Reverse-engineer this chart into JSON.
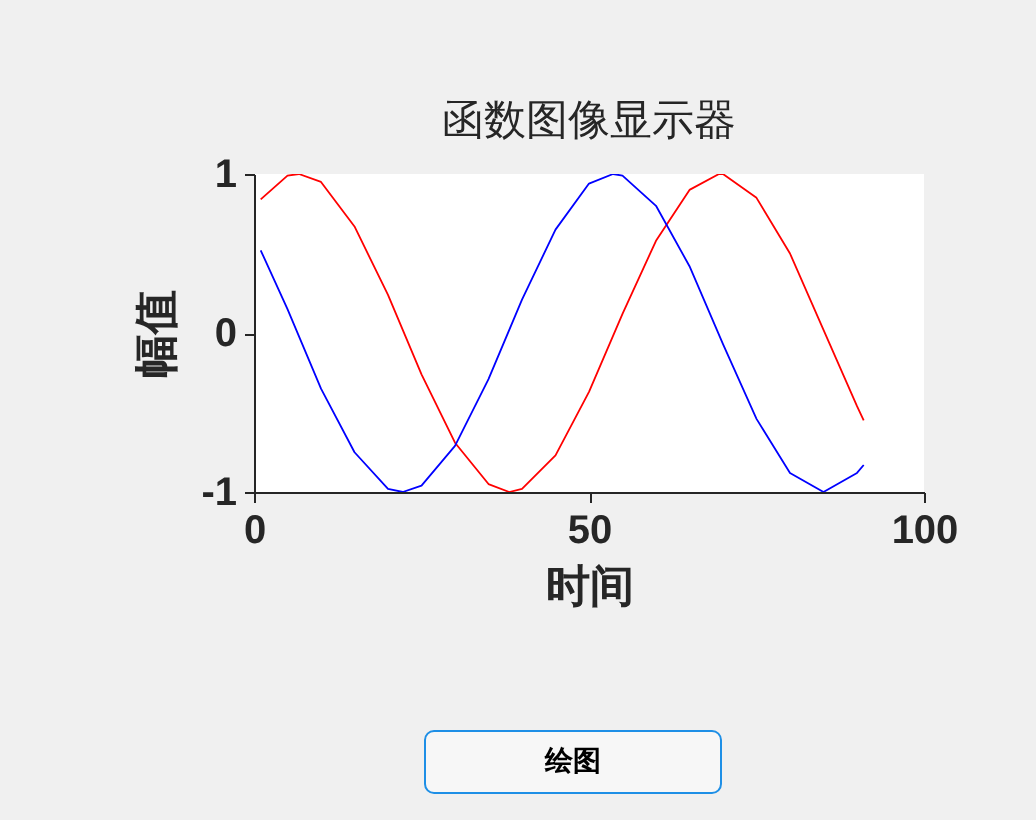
{
  "chart_data": {
    "type": "line",
    "title": "函数图像显示器",
    "xlabel": "时间",
    "ylabel": "幅值",
    "xlim": [
      0,
      100
    ],
    "xticks": [
      0,
      50,
      100
    ],
    "ylim": [
      -1,
      1
    ],
    "yticks": [
      {
        "value": -1,
        "label": "-1"
      },
      {
        "value": 0,
        "label": "0"
      },
      {
        "value": 1,
        "label": "1"
      }
    ],
    "grid": false,
    "marker": "none",
    "line_style": "solid",
    "annotations": [
      "绘图"
    ],
    "series": [
      {
        "color": "#ff0000",
        "x": [
          1,
          5,
          6.7,
          10,
          15,
          20,
          25,
          30,
          35,
          38.1,
          40,
          45,
          50,
          55,
          60,
          65,
          69.4,
          70,
          75,
          80,
          85,
          90,
          91
        ],
        "values": [
          0.84,
          0.99,
          1,
          0.95,
          0.67,
          0.24,
          -0.26,
          -0.69,
          -0.95,
          -1,
          -0.98,
          -0.77,
          -0.37,
          0.12,
          0.58,
          0.9,
          1,
          1,
          0.85,
          0.5,
          0.02,
          -0.46,
          -0.55
        ]
      },
      {
        "color": "#0000ff",
        "x": [
          1,
          5,
          10,
          15,
          20,
          22.2,
          25,
          30,
          35,
          40,
          45,
          50,
          53.6,
          55,
          60,
          65,
          70,
          75,
          80,
          85,
          90,
          91
        ],
        "values": [
          0.52,
          0.15,
          -0.35,
          -0.75,
          -0.98,
          -1,
          -0.96,
          -0.71,
          -0.29,
          0.21,
          0.65,
          0.94,
          1,
          0.99,
          0.8,
          0.42,
          -0.07,
          -0.54,
          -0.88,
          -1,
          -0.88,
          -0.83
        ]
      }
    ]
  }
}
